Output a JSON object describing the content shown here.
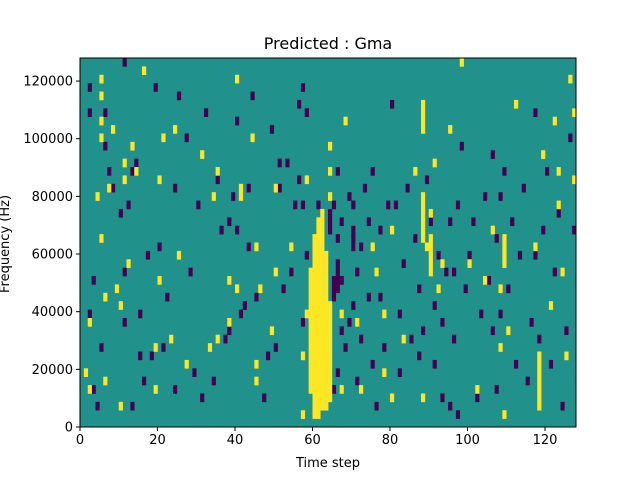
{
  "chart_data": {
    "type": "heatmap",
    "title": "Predicted : Gma",
    "xlabel": "Time step",
    "ylabel": "Frequency (Hz)",
    "xlim": [
      0,
      128
    ],
    "ylim": [
      0,
      128000
    ],
    "xticks": [
      0,
      20,
      40,
      60,
      80,
      100,
      120
    ],
    "yticks": [
      0,
      20000,
      40000,
      60000,
      80000,
      100000,
      120000
    ],
    "n_time_steps": 128,
    "n_freq_bins": 44,
    "background_color": "#21918c",
    "colors": {
      "low": "#440154",
      "mid": "#21918c",
      "high": "#fde725"
    },
    "high_cells": [
      [
        1,
        6
      ],
      [
        2,
        4
      ],
      [
        2,
        12
      ],
      [
        4,
        27
      ],
      [
        5,
        34
      ],
      [
        5,
        36
      ],
      [
        5,
        39
      ],
      [
        5,
        41
      ],
      [
        5,
        22
      ],
      [
        6,
        5
      ],
      [
        6,
        15
      ],
      [
        7,
        28
      ],
      [
        8,
        35
      ],
      [
        9,
        16
      ],
      [
        10,
        14
      ],
      [
        10,
        2
      ],
      [
        11,
        29
      ],
      [
        11,
        31
      ],
      [
        12,
        19
      ],
      [
        13,
        33
      ],
      [
        14,
        30
      ],
      [
        16,
        42
      ],
      [
        19,
        4
      ],
      [
        19,
        9
      ],
      [
        20,
        17
      ],
      [
        20,
        29
      ],
      [
        21,
        34
      ],
      [
        23,
        10
      ],
      [
        24,
        35
      ],
      [
        25,
        20
      ],
      [
        27,
        7
      ],
      [
        31,
        32
      ],
      [
        33,
        9
      ],
      [
        34,
        27
      ],
      [
        35,
        10
      ],
      [
        35,
        30
      ],
      [
        38,
        12
      ],
      [
        38,
        17
      ],
      [
        40,
        16
      ],
      [
        40,
        41
      ],
      [
        41,
        28
      ],
      [
        41,
        27
      ],
      [
        44,
        34
      ],
      [
        45,
        7
      ],
      [
        45,
        5
      ],
      [
        45,
        21
      ],
      [
        46,
        16
      ],
      [
        49,
        11
      ],
      [
        50,
        18
      ],
      [
        50,
        28
      ],
      [
        54,
        21
      ],
      [
        57,
        8
      ],
      [
        57,
        1
      ],
      [
        58,
        13
      ],
      [
        58,
        29
      ],
      [
        59,
        10
      ],
      [
        60,
        3
      ],
      [
        60,
        17
      ],
      [
        61,
        11
      ],
      [
        61,
        2
      ],
      [
        62,
        7
      ],
      [
        62,
        6
      ],
      [
        62,
        3
      ],
      [
        63,
        5
      ],
      [
        63,
        12
      ],
      [
        63,
        2
      ],
      [
        63,
        4
      ],
      [
        64,
        27
      ],
      [
        64,
        30
      ],
      [
        64,
        33
      ],
      [
        67,
        13
      ],
      [
        67,
        4
      ],
      [
        68,
        36
      ],
      [
        71,
        12
      ],
      [
        72,
        4
      ],
      [
        75,
        21
      ],
      [
        76,
        18
      ],
      [
        78,
        6
      ],
      [
        78,
        13
      ],
      [
        80,
        23
      ],
      [
        80,
        3
      ],
      [
        83,
        10
      ],
      [
        86,
        30
      ],
      [
        88,
        3
      ],
      [
        89,
        21
      ],
      [
        90,
        25
      ],
      [
        91,
        31
      ],
      [
        92,
        16
      ],
      [
        93,
        19
      ],
      [
        95,
        35
      ],
      [
        98,
        43
      ],
      [
        100,
        19
      ],
      [
        102,
        4
      ],
      [
        104,
        17
      ],
      [
        106,
        23
      ],
      [
        108,
        9
      ],
      [
        108,
        16
      ],
      [
        109,
        1
      ],
      [
        110,
        11
      ],
      [
        112,
        38
      ],
      [
        117,
        21
      ],
      [
        119,
        32
      ],
      [
        121,
        14
      ],
      [
        122,
        36
      ],
      [
        123,
        30
      ],
      [
        123,
        26
      ],
      [
        124,
        18
      ],
      [
        125,
        8
      ],
      [
        126,
        41
      ],
      [
        127,
        37
      ],
      [
        127,
        29
      ]
    ],
    "high_runs": [
      {
        "x": 59,
        "y_from": 4,
        "y_to": 9
      },
      {
        "x": 59,
        "y_from": 11,
        "y_to": 18
      },
      {
        "x": 60,
        "y_from": 1,
        "y_to": 22
      },
      {
        "x": 61,
        "y_from": 1,
        "y_to": 24
      },
      {
        "x": 62,
        "y_from": 2,
        "y_to": 25
      },
      {
        "x": 63,
        "y_from": 2,
        "y_to": 20
      },
      {
        "x": 64,
        "y_from": 3,
        "y_to": 14
      },
      {
        "x": 88,
        "y_from": 35,
        "y_to": 38
      },
      {
        "x": 88,
        "y_from": 22,
        "y_to": 27
      },
      {
        "x": 90,
        "y_from": 18,
        "y_to": 22
      },
      {
        "x": 109,
        "y_from": 19,
        "y_to": 22
      },
      {
        "x": 118,
        "y_from": 2,
        "y_to": 8
      }
    ],
    "low_cells": [
      [
        2,
        40
      ],
      [
        2,
        37
      ],
      [
        2,
        13
      ],
      [
        3,
        17
      ],
      [
        3,
        4
      ],
      [
        4,
        2
      ],
      [
        5,
        9
      ],
      [
        6,
        37
      ],
      [
        6,
        33
      ],
      [
        7,
        30
      ],
      [
        8,
        28
      ],
      [
        10,
        25
      ],
      [
        11,
        12
      ],
      [
        11,
        18
      ],
      [
        11,
        43
      ],
      [
        12,
        26
      ],
      [
        13,
        30
      ],
      [
        13,
        2
      ],
      [
        14,
        31
      ],
      [
        15,
        8
      ],
      [
        15,
        13
      ],
      [
        16,
        5
      ],
      [
        17,
        20
      ],
      [
        18,
        8
      ],
      [
        19,
        40
      ],
      [
        20,
        21
      ],
      [
        21,
        9
      ],
      [
        22,
        15
      ],
      [
        24,
        28
      ],
      [
        24,
        4
      ],
      [
        25,
        39
      ],
      [
        27,
        34
      ],
      [
        28,
        18
      ],
      [
        29,
        6
      ],
      [
        30,
        26
      ],
      [
        31,
        3
      ],
      [
        32,
        37
      ],
      [
        34,
        5
      ],
      [
        35,
        29
      ],
      [
        36,
        23
      ],
      [
        37,
        10
      ],
      [
        38,
        11
      ],
      [
        38,
        24
      ],
      [
        39,
        27
      ],
      [
        40,
        36
      ],
      [
        40,
        23
      ],
      [
        41,
        13
      ],
      [
        42,
        14
      ],
      [
        43,
        21
      ],
      [
        43,
        28
      ],
      [
        44,
        39
      ],
      [
        45,
        15
      ],
      [
        47,
        3
      ],
      [
        48,
        8
      ],
      [
        49,
        35
      ],
      [
        50,
        9
      ],
      [
        51,
        28
      ],
      [
        51,
        31
      ],
      [
        52,
        16
      ],
      [
        53,
        31
      ],
      [
        54,
        18
      ],
      [
        55,
        26
      ],
      [
        56,
        38
      ],
      [
        56,
        29
      ],
      [
        57,
        12
      ],
      [
        57,
        26
      ],
      [
        57,
        40
      ],
      [
        58,
        20
      ],
      [
        58,
        37
      ],
      [
        60,
        21
      ],
      [
        61,
        14
      ],
      [
        61,
        26
      ],
      [
        65,
        4
      ],
      [
        65,
        26
      ],
      [
        66,
        6
      ],
      [
        66,
        16
      ],
      [
        66,
        22
      ],
      [
        66,
        30
      ],
      [
        67,
        11
      ],
      [
        67,
        24
      ],
      [
        67,
        17
      ],
      [
        68,
        9
      ],
      [
        69,
        12
      ],
      [
        69,
        27
      ],
      [
        70,
        14
      ],
      [
        70,
        26
      ],
      [
        71,
        18
      ],
      [
        71,
        5
      ],
      [
        72,
        10
      ],
      [
        72,
        21
      ],
      [
        73,
        28
      ],
      [
        74,
        15
      ],
      [
        74,
        24
      ],
      [
        75,
        7
      ],
      [
        75,
        30
      ],
      [
        76,
        2
      ],
      [
        77,
        23
      ],
      [
        77,
        15
      ],
      [
        78,
        9
      ],
      [
        79,
        26
      ],
      [
        80,
        38
      ],
      [
        81,
        26
      ],
      [
        82,
        13
      ],
      [
        82,
        6
      ],
      [
        83,
        19
      ],
      [
        84,
        28
      ],
      [
        85,
        10
      ],
      [
        86,
        22
      ],
      [
        87,
        8
      ],
      [
        87,
        16
      ],
      [
        88,
        11
      ],
      [
        89,
        29
      ],
      [
        90,
        24
      ],
      [
        91,
        7
      ],
      [
        91,
        14
      ],
      [
        92,
        20
      ],
      [
        93,
        12
      ],
      [
        93,
        3
      ],
      [
        94,
        18
      ],
      [
        95,
        24
      ],
      [
        95,
        2
      ],
      [
        96,
        10
      ],
      [
        96,
        18
      ],
      [
        97,
        26
      ],
      [
        97,
        1
      ],
      [
        98,
        33
      ],
      [
        99,
        16
      ],
      [
        100,
        20
      ],
      [
        101,
        24
      ],
      [
        102,
        3
      ],
      [
        103,
        13
      ],
      [
        104,
        27
      ],
      [
        105,
        17
      ],
      [
        106,
        11
      ],
      [
        106,
        32
      ],
      [
        107,
        22
      ],
      [
        107,
        4
      ],
      [
        108,
        13
      ],
      [
        108,
        27
      ],
      [
        109,
        30
      ],
      [
        110,
        16
      ],
      [
        111,
        24
      ],
      [
        112,
        7
      ],
      [
        113,
        20
      ],
      [
        114,
        28
      ],
      [
        115,
        5
      ],
      [
        116,
        12
      ],
      [
        117,
        20
      ],
      [
        117,
        37
      ],
      [
        118,
        10
      ],
      [
        119,
        23
      ],
      [
        120,
        30
      ],
      [
        121,
        7
      ],
      [
        122,
        18
      ],
      [
        123,
        25
      ],
      [
        124,
        2
      ],
      [
        125,
        11
      ],
      [
        126,
        34
      ],
      [
        127,
        23
      ]
    ],
    "low_runs": [
      {
        "x": 64,
        "y_from": 23,
        "y_to": 25
      },
      {
        "x": 65,
        "y_from": 15,
        "y_to": 17
      },
      {
        "x": 66,
        "y_from": 17,
        "y_to": 19
      },
      {
        "x": 70,
        "y_from": 21,
        "y_to": 23
      }
    ]
  }
}
